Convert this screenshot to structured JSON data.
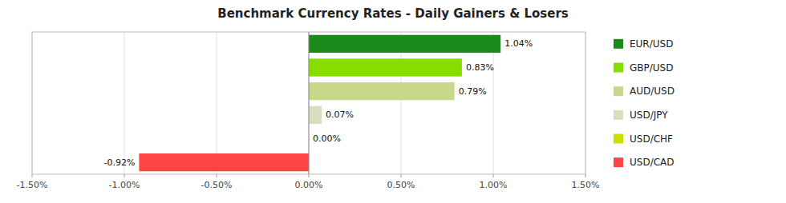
{
  "chart_data": {
    "type": "bar",
    "orientation": "horizontal",
    "title": "Benchmark Currency Rates - Daily Gainers & Losers",
    "categories": [
      "EUR/USD",
      "GBP/USD",
      "AUD/USD",
      "USD/JPY",
      "USD/CHF",
      "USD/CAD"
    ],
    "values": [
      1.04,
      0.83,
      0.79,
      0.07,
      0.0,
      -0.92
    ],
    "value_labels": [
      "1.04%",
      "0.83%",
      "0.79%",
      "0.07%",
      "0.00%",
      "-0.92%"
    ],
    "colors": [
      "#1A8A1A",
      "#88DD00",
      "#C8D88A",
      "#DADEC0",
      "#CCDD00",
      "#FF4444"
    ],
    "xlim": [
      -1.5,
      1.5
    ],
    "xticks": [
      {
        "value": -1.5,
        "label": "-1.50%"
      },
      {
        "value": -1.0,
        "label": "-1.00%"
      },
      {
        "value": -0.5,
        "label": "-0.50%"
      },
      {
        "value": 0.0,
        "label": "0.00%"
      },
      {
        "value": 0.5,
        "label": "0.50%"
      },
      {
        "value": 1.0,
        "label": "1.00%"
      },
      {
        "value": 1.5,
        "label": "1.50%"
      }
    ],
    "grid": true,
    "data_labels": true,
    "tick_labels": "x",
    "legend": "right"
  }
}
